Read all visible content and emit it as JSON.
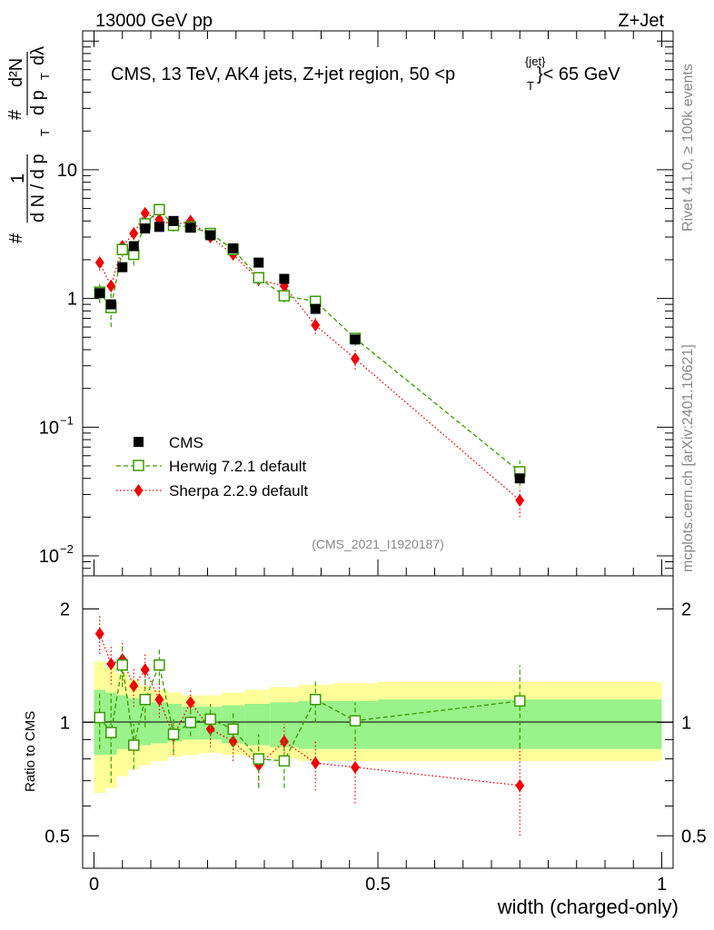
{
  "header": {
    "left_label": "13000 GeV pp",
    "right_label": "Z+Jet"
  },
  "side_labels": {
    "rivet": "Rivet 4.1.0, ≥ 100k events",
    "mcplots": "mcplots.cern.ch [arXiv:2401.10621]"
  },
  "chart_data": [
    {
      "type": "line",
      "title": "CMS, 13 TeV, AK4 jets, Z+jet region, 50 < p_T^{jet} < 65 GeV",
      "title_parts": {
        "prefix": "CMS, 13 TeV, AK4 jets, Z+jet region, 50 <p",
        "sup": "{jet}",
        "sub": "T",
        "suffix": "}< 65 GeV"
      },
      "ylabel_parts": {
        "hash": "#",
        "one": "1",
        "dN": "d N / d p",
        "T": "T",
        "hash2": "#",
        "d2N": "d²N",
        "dpT": "d p",
        "dlam": "dλ"
      },
      "yscale": "log",
      "ylim": [
        0.007,
        120
      ],
      "xlim": [
        -0.02,
        1.02
      ],
      "yticks": [
        {
          "value": 0.01,
          "base": "10",
          "exp": "−2"
        },
        {
          "value": 0.1,
          "base": "10",
          "exp": "−1"
        },
        {
          "value": 1,
          "label": "1"
        },
        {
          "value": 10,
          "label": "10"
        }
      ],
      "watermark": "(CMS_2021_I1920187)",
      "legend": {
        "position": "lower-left",
        "entries": [
          "CMS",
          "Herwig 7.2.1 default",
          "Sherpa 2.2.9 default"
        ]
      },
      "series": [
        {
          "name": "CMS",
          "color": "#000000",
          "marker": "square-filled",
          "x": [
            0.01,
            0.03,
            0.05,
            0.07,
            0.09,
            0.115,
            0.14,
            0.17,
            0.205,
            0.245,
            0.29,
            0.335,
            0.39,
            0.46,
            0.75
          ],
          "values": [
            1.1,
            0.9,
            1.75,
            2.55,
            3.5,
            3.6,
            4.0,
            3.55,
            3.1,
            2.45,
            1.9,
            1.42,
            0.83,
            0.48,
            0.04
          ],
          "err": [
            0,
            0,
            0,
            0,
            0,
            0,
            0,
            0,
            0,
            0,
            0,
            0,
            0,
            0,
            0
          ]
        },
        {
          "name": "Herwig 7.2.1 default",
          "color": "#3a9a00",
          "marker": "square-open",
          "linestyle": "dashed",
          "x": [
            0.01,
            0.03,
            0.05,
            0.07,
            0.09,
            0.115,
            0.14,
            0.17,
            0.205,
            0.245,
            0.29,
            0.335,
            0.39,
            0.46,
            0.75
          ],
          "values": [
            1.12,
            0.85,
            2.4,
            2.2,
            3.8,
            4.9,
            3.7,
            3.6,
            3.2,
            2.4,
            1.45,
            1.05,
            0.95,
            0.49,
            0.045
          ],
          "err": [
            0.2,
            0.25,
            0.3,
            0.4,
            0.5,
            0.5,
            0.4,
            0.35,
            0.3,
            0.2,
            0.18,
            0.12,
            0.12,
            0.06,
            0.01
          ]
        },
        {
          "name": "Sherpa 2.2.9 default",
          "color": "#ee0000",
          "marker": "diamond-filled",
          "linestyle": "dotted",
          "x": [
            0.01,
            0.03,
            0.05,
            0.07,
            0.09,
            0.115,
            0.14,
            0.17,
            0.205,
            0.245,
            0.29,
            0.335,
            0.39,
            0.46,
            0.75
          ],
          "values": [
            1.9,
            1.25,
            2.55,
            3.2,
            4.6,
            4.1,
            3.7,
            4.0,
            3.0,
            2.2,
            1.4,
            1.25,
            0.62,
            0.34,
            0.027
          ],
          "err": [
            0.25,
            0.2,
            0.3,
            0.35,
            0.4,
            0.4,
            0.35,
            0.35,
            0.3,
            0.2,
            0.15,
            0.12,
            0.09,
            0.06,
            0.007
          ]
        }
      ]
    },
    {
      "type": "line",
      "ylabel": "Ratio to CMS",
      "xlabel": "width (charged-only)",
      "yscale": "log",
      "ylim": [
        0.41,
        2.45
      ],
      "xlim": [
        -0.02,
        1.02
      ],
      "yticks": [
        0.5,
        1,
        2
      ],
      "ytick_labels": [
        "0.5",
        "1",
        "2"
      ],
      "xticks": [
        0,
        0.5,
        1
      ],
      "xtick_labels": [
        "0",
        "0.5",
        "1"
      ],
      "uncertainty_bands": {
        "edges": [
          0,
          0.02,
          0.04,
          0.06,
          0.08,
          0.1,
          0.13,
          0.155,
          0.185,
          0.225,
          0.265,
          0.31,
          0.36,
          0.42,
          0.5,
          1.0
        ],
        "stat_lo": [
          0.82,
          0.82,
          0.85,
          0.86,
          0.87,
          0.88,
          0.89,
          0.9,
          0.9,
          0.88,
          0.87,
          0.86,
          0.85,
          0.85,
          0.85
        ],
        "stat_hi": [
          1.22,
          1.2,
          1.18,
          1.16,
          1.14,
          1.13,
          1.12,
          1.1,
          1.1,
          1.11,
          1.12,
          1.13,
          1.14,
          1.14,
          1.15
        ],
        "total_lo": [
          0.65,
          0.67,
          0.72,
          0.75,
          0.77,
          0.79,
          0.81,
          0.82,
          0.83,
          0.82,
          0.81,
          0.8,
          0.79,
          0.79,
          0.79
        ],
        "total_hi": [
          1.45,
          1.4,
          1.35,
          1.3,
          1.25,
          1.22,
          1.2,
          1.18,
          1.18,
          1.2,
          1.22,
          1.24,
          1.26,
          1.27,
          1.28
        ]
      },
      "series": [
        {
          "name": "Herwig 7.2.1 default",
          "x": [
            0.01,
            0.03,
            0.05,
            0.07,
            0.09,
            0.115,
            0.14,
            0.17,
            0.205,
            0.245,
            0.29,
            0.335,
            0.39,
            0.46,
            0.75
          ],
          "values": [
            1.03,
            0.94,
            1.42,
            0.87,
            1.15,
            1.42,
            0.93,
            1.0,
            1.02,
            0.96,
            0.8,
            0.79,
            1.15,
            1.01,
            1.14
          ],
          "err": [
            0.18,
            0.25,
            0.18,
            0.12,
            0.18,
            0.15,
            0.1,
            0.08,
            0.1,
            0.1,
            0.13,
            0.12,
            0.15,
            0.12,
            0.28
          ]
        },
        {
          "name": "Sherpa 2.2.9 default",
          "x": [
            0.01,
            0.03,
            0.05,
            0.07,
            0.09,
            0.115,
            0.14,
            0.17,
            0.205,
            0.245,
            0.29,
            0.335,
            0.39,
            0.46,
            0.75
          ],
          "values": [
            1.72,
            1.43,
            1.47,
            1.25,
            1.38,
            1.15,
            0.92,
            1.13,
            0.96,
            0.89,
            0.77,
            0.89,
            0.78,
            0.76,
            0.68
          ],
          "err": [
            0.2,
            0.17,
            0.18,
            0.15,
            0.15,
            0.12,
            0.1,
            0.1,
            0.1,
            0.1,
            0.1,
            0.1,
            0.12,
            0.15,
            0.18
          ]
        }
      ]
    }
  ]
}
